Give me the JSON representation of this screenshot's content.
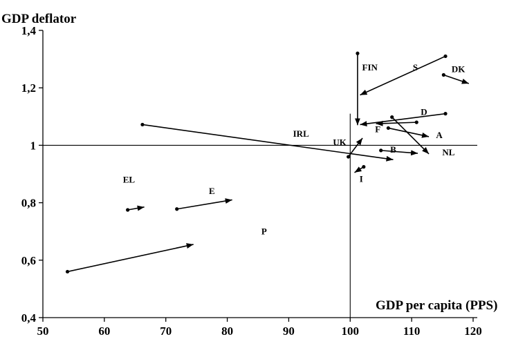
{
  "chart_data": {
    "type": "scatter",
    "ylabel": "GDP deflator",
    "xlabel": "GDP per capita (PPS)",
    "xlim": [
      50,
      120
    ],
    "ylim": [
      0.4,
      1.4
    ],
    "x_ticks": [
      50,
      60,
      70,
      80,
      90,
      100,
      110,
      120
    ],
    "y_ticks": [
      {
        "value": 0.4,
        "label": "0,4"
      },
      {
        "value": 0.6,
        "label": "0,6"
      },
      {
        "value": 0.8,
        "label": "0,8"
      },
      {
        "value": 1.0,
        "label": "1"
      },
      {
        "value": 1.2,
        "label": "1,2"
      },
      {
        "value": 1.4,
        "label": "1,4"
      }
    ],
    "reference_lines": {
      "x": 100,
      "y": 1.0
    },
    "grid": false,
    "series": [
      {
        "name": "P",
        "from": [
          54.0,
          0.56
        ],
        "to": [
          74.5,
          0.655
        ],
        "label_at": [
          86.0,
          0.69
        ]
      },
      {
        "name": "EL",
        "from": [
          63.8,
          0.775
        ],
        "to": [
          66.5,
          0.785
        ],
        "label_at": [
          64.0,
          0.87
        ]
      },
      {
        "name": "E",
        "from": [
          71.8,
          0.778
        ],
        "to": [
          80.8,
          0.81
        ],
        "label_at": [
          77.5,
          0.83
        ]
      },
      {
        "name": "IRL",
        "from": [
          66.2,
          1.072
        ],
        "to": [
          107.0,
          0.95
        ],
        "label_at": [
          92.0,
          1.03
        ]
      },
      {
        "name": "UK",
        "from": [
          99.7,
          0.96
        ],
        "to": [
          102.0,
          1.025
        ],
        "label_at": [
          98.3,
          1.0
        ]
      },
      {
        "name": "I",
        "from": [
          102.2,
          0.925
        ],
        "to": [
          100.7,
          0.905
        ],
        "label_at": [
          101.8,
          0.872
        ]
      },
      {
        "name": "FIN",
        "from": [
          101.2,
          1.32
        ],
        "to": [
          101.2,
          1.07
        ],
        "label_at": [
          103.2,
          1.26
        ]
      },
      {
        "name": "S",
        "from": [
          115.5,
          1.31
        ],
        "to": [
          101.6,
          1.175
        ],
        "label_at": [
          110.6,
          1.26
        ]
      },
      {
        "name": "DK",
        "from": [
          115.2,
          1.245
        ],
        "to": [
          119.3,
          1.215
        ],
        "label_at": [
          117.6,
          1.255
        ]
      },
      {
        "name": "D",
        "from": [
          115.5,
          1.11
        ],
        "to": [
          101.6,
          1.072
        ],
        "label_at": [
          112.0,
          1.105
        ]
      },
      {
        "name": "F",
        "from": [
          110.8,
          1.08
        ],
        "to": [
          104.2,
          1.075
        ],
        "label_at": [
          104.5,
          1.045
        ]
      },
      {
        "name": "A",
        "from": [
          106.2,
          1.06
        ],
        "to": [
          112.8,
          1.03
        ],
        "label_at": [
          114.5,
          1.025
        ]
      },
      {
        "name": "NL",
        "from": [
          106.8,
          1.098
        ],
        "to": [
          112.8,
          0.97
        ],
        "label_at": [
          116.0,
          0.965
        ]
      },
      {
        "name": "B",
        "from": [
          105.0,
          0.982
        ],
        "to": [
          111.0,
          0.972
        ],
        "label_at": [
          107.0,
          0.975
        ]
      }
    ]
  }
}
